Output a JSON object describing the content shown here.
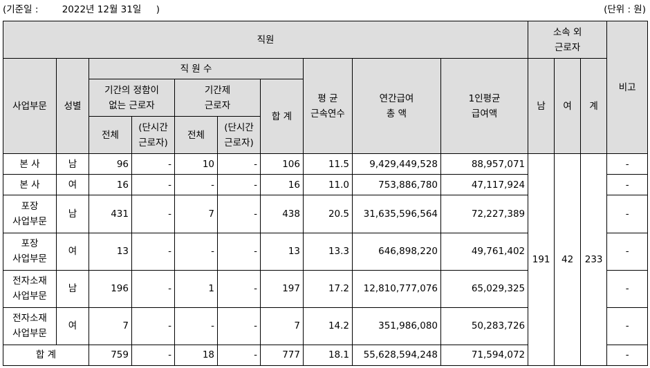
{
  "caption": {
    "date": "(기준일 :        2022년 12월 31일     )",
    "unit": "(단위 : 원)"
  },
  "header": {
    "staff": "직원",
    "outsourced": "소속 외\n근로자",
    "remarks": "비고",
    "division": "사업부문",
    "gender": "성별",
    "headcount": "직 원 수",
    "avg_tenure": "평 균\n근속연수",
    "annual_pay": "연간급여\n총 액",
    "avg_pay": "1인평균\n급여액",
    "male": "남",
    "female": "여",
    "total": "계",
    "permanent": "기간의 정함이\n없는 근로자",
    "fixed_term": "기간제\n근로자",
    "sum": "합 계",
    "all": "전체",
    "part_time": "(단시간\n근로자)"
  },
  "rows": [
    {
      "division": "본  사",
      "gender": "남",
      "perm_total": "96",
      "perm_part": "-",
      "fixed_total": "10",
      "fixed_part": "-",
      "sum": "106",
      "tenure": "11.5",
      "annual_pay": "9,429,449,528",
      "avg_pay": "88,957,071",
      "remarks": "-"
    },
    {
      "division": "본  사",
      "gender": "여",
      "perm_total": "16",
      "perm_part": "-",
      "fixed_total": "-",
      "fixed_part": "-",
      "sum": "16",
      "tenure": "11.0",
      "annual_pay": "753,886,780",
      "avg_pay": "47,117,924",
      "remarks": "-"
    },
    {
      "division": "포장\n사업부문",
      "gender": "남",
      "perm_total": "431",
      "perm_part": "-",
      "fixed_total": "7",
      "fixed_part": "-",
      "sum": "438",
      "tenure": "20.5",
      "annual_pay": "31,635,596,564",
      "avg_pay": "72,227,389",
      "remarks": "-"
    },
    {
      "division": "포장\n사업부문",
      "gender": "여",
      "perm_total": "13",
      "perm_part": "-",
      "fixed_total": "-",
      "fixed_part": "-",
      "sum": "13",
      "tenure": "13.3",
      "annual_pay": "646,898,220",
      "avg_pay": "49,761,402",
      "remarks": "-"
    },
    {
      "division": "전자소재\n사업부문",
      "gender": "남",
      "perm_total": "196",
      "perm_part": "-",
      "fixed_total": "1",
      "fixed_part": "-",
      "sum": "197",
      "tenure": "17.2",
      "annual_pay": "12,810,777,076",
      "avg_pay": "65,029,325",
      "remarks": "-"
    },
    {
      "division": "전자소재\n사업부문",
      "gender": "여",
      "perm_total": "7",
      "perm_part": "-",
      "fixed_total": "-",
      "fixed_part": "-",
      "sum": "7",
      "tenure": "14.2",
      "annual_pay": "351,986,080",
      "avg_pay": "50,283,726",
      "remarks": "-"
    }
  ],
  "outsourced": {
    "male": "191",
    "female": "42",
    "total": "233"
  },
  "total_row": {
    "label": "합 계",
    "perm_total": "759",
    "perm_part": "-",
    "fixed_total": "18",
    "fixed_part": "-",
    "sum": "777",
    "tenure": "18.1",
    "annual_pay": "55,628,594,248",
    "avg_pay": "71,594,072",
    "remarks": "-"
  }
}
